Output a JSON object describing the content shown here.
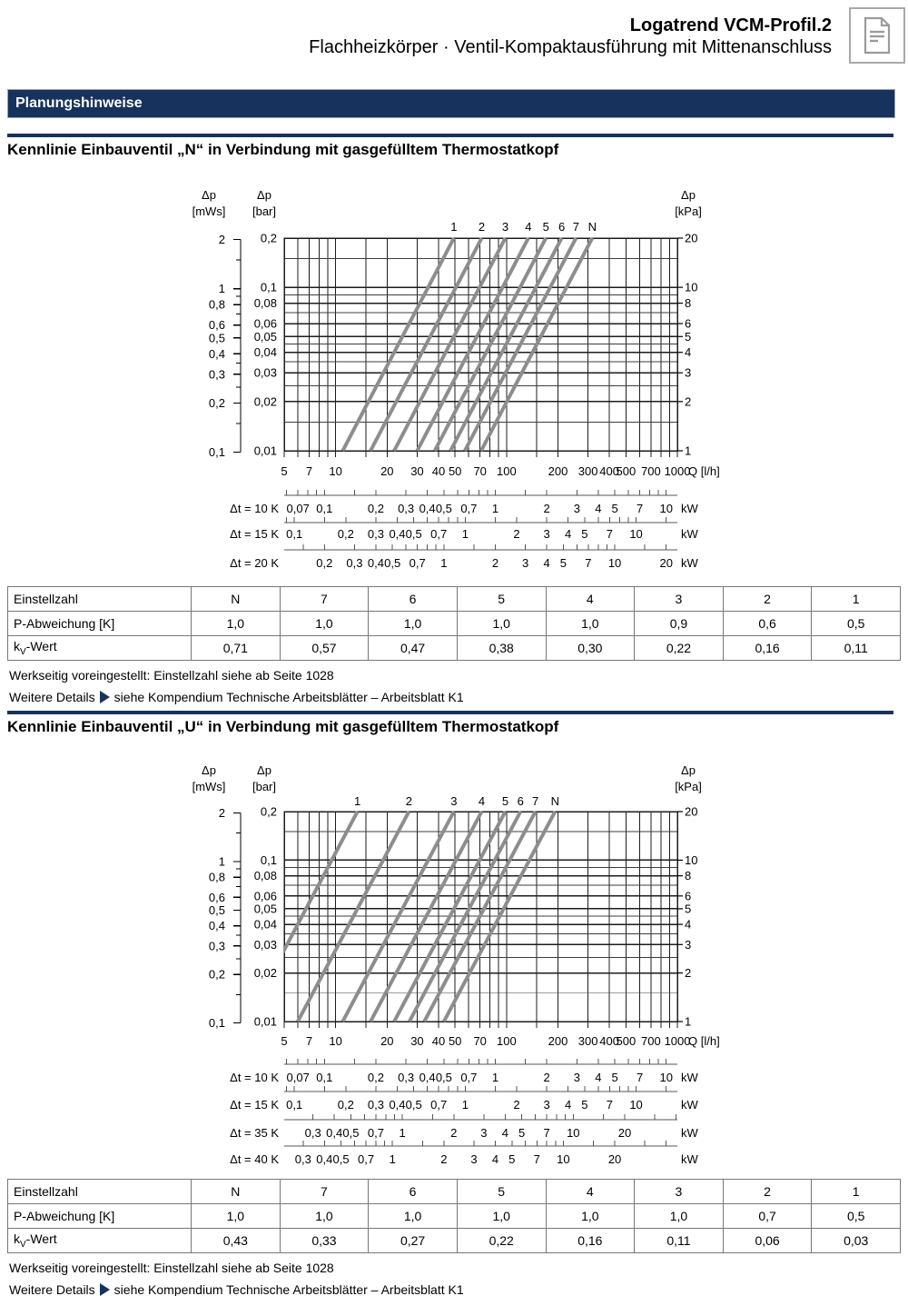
{
  "header": {
    "title": "Logatrend VCM-Profil.2",
    "subtitle": "Flachheizkörper · Ventil-Kompaktausführung mit Mittenanschluss"
  },
  "banner": {
    "label": "Planungshinweise"
  },
  "colors": {
    "navy": "#17325c",
    "curve_gray": "#8d8d8d",
    "grid_major": "#1c1c1c",
    "grid_minor": "#3c3c3c",
    "ruler_line": "#555555",
    "table_border": "#777777",
    "icon_gray": "#9b9b9b"
  },
  "sections": [
    {
      "title": "Kennlinie Einbauventil „N“ in Verbindung mit gasgefülltem Thermostatkopf",
      "table": {
        "rows": [
          {
            "label": "Einstellzahl",
            "values": [
              "N",
              "7",
              "6",
              "5",
              "4",
              "3",
              "2",
              "1"
            ]
          },
          {
            "label": "P-Abweichung [K]",
            "values": [
              "1,0",
              "1,0",
              "1,0",
              "1,0",
              "1,0",
              "0,9",
              "0,6",
              "0,5"
            ]
          },
          {
            "label_parts": {
              "pre": "k",
              "sub": "V",
              "post": "-Wert"
            },
            "values": [
              "0,71",
              "0,57",
              "0,47",
              "0,38",
              "0,30",
              "0,22",
              "0,16",
              "0,11"
            ]
          }
        ]
      },
      "notes": {
        "preset": "Werkseitig voreingestellt: Einstellzahl siehe ab Seite 1028",
        "details_pre": "Weitere Details",
        "details_post": "siehe Kompendium Technische Arbeitsblätter – Arbeitsblatt K1"
      }
    },
    {
      "title": "Kennlinie Einbauventil „U“ in Verbindung mit gasgefülltem Thermostatkopf",
      "table": {
        "rows": [
          {
            "label": "Einstellzahl",
            "values": [
              "N",
              "7",
              "6",
              "5",
              "4",
              "3",
              "2",
              "1"
            ]
          },
          {
            "label": "P-Abweichung [K]",
            "values": [
              "1,0",
              "1,0",
              "1,0",
              "1,0",
              "1,0",
              "1,0",
              "0,7",
              "0,5"
            ]
          },
          {
            "label_parts": {
              "pre": "k",
              "sub": "V",
              "post": "-Wert"
            },
            "values": [
              "0,43",
              "0,33",
              "0,27",
              "0,22",
              "0,16",
              "0,11",
              "0,06",
              "0,03"
            ]
          }
        ]
      },
      "notes": {
        "preset": "Werkseitig voreingestellt: Einstellzahl siehe ab Seite 1028",
        "details_pre": "Weitere Details",
        "details_post": "siehe Kompendium Technische Arbeitsblätter – Arbeitsblatt K1"
      }
    }
  ],
  "chart_data": [
    {
      "type": "line",
      "name": "Einbauventil N",
      "scale": "log-log",
      "x_axis": {
        "label": "Q [l/h]",
        "min": 5,
        "max": 1000,
        "tick_labels": [
          5,
          7,
          10,
          20,
          30,
          40,
          50,
          70,
          100,
          200,
          300,
          400,
          500,
          700,
          1000
        ],
        "gridlines": [
          5,
          6,
          7,
          8,
          9,
          10,
          15,
          20,
          30,
          40,
          50,
          60,
          70,
          80,
          90,
          100,
          150,
          200,
          300,
          400,
          500,
          600,
          700,
          800,
          900,
          1000
        ]
      },
      "y_axis_bar": {
        "header": [
          "Δp",
          "[bar]"
        ],
        "min": 0.01,
        "max": 0.2,
        "labeled_gridlines": [
          0.2,
          0.1,
          0.08,
          0.06,
          0.05,
          0.04,
          0.03,
          0.02,
          0.01
        ],
        "minor_gridlines": [
          0.15,
          0.09,
          0.07,
          0.045,
          0.035,
          0.025,
          0.015
        ]
      },
      "y_axis_mws": {
        "header": [
          "Δp",
          "[mWs]"
        ],
        "bar_per_mws": 0.098,
        "labeled_ticks": [
          2,
          1,
          0.8,
          0.6,
          0.5,
          0.4,
          0.3,
          0.2,
          0.1
        ],
        "minor_ticks": [
          1.5,
          0.9,
          0.7,
          0.35,
          0.25,
          0.15
        ]
      },
      "y_axis_kpa": {
        "header": [
          "Δp",
          "[kPa]"
        ],
        "labels": [
          20,
          10,
          8,
          6,
          5,
          4,
          3,
          2,
          1
        ]
      },
      "series": [
        {
          "name": "1",
          "kv": 0.11
        },
        {
          "name": "2",
          "kv": 0.16
        },
        {
          "name": "3",
          "kv": 0.22
        },
        {
          "name": "4",
          "kv": 0.3
        },
        {
          "name": "5",
          "kv": 0.38
        },
        {
          "name": "6",
          "kv": 0.47
        },
        {
          "name": "7",
          "kv": 0.57
        },
        {
          "name": "N",
          "kv": 0.71
        }
      ],
      "curve_relation": "Δp[bar] = (Q[l/h] / (1000 · kV))²",
      "power_factor_kW_per_lh_K": 0.001163,
      "ruler_tick_mantissas": [
        1,
        1.5,
        2,
        3,
        4,
        5,
        6,
        7,
        8,
        9
      ],
      "rulers": [
        {
          "label": "Δt = 10 K",
          "dt_K": 10,
          "unit": "kW",
          "tick_labels": [
            0.07,
            0.1,
            0.2,
            0.3,
            0.4,
            0.5,
            0.7,
            1,
            2,
            3,
            4,
            5,
            7,
            10
          ]
        },
        {
          "label": "Δt = 15 K",
          "dt_K": 15,
          "unit": "kW",
          "tick_labels": [
            0.1,
            0.2,
            0.3,
            0.4,
            0.5,
            0.7,
            1,
            2,
            3,
            4,
            5,
            7,
            10
          ]
        },
        {
          "label": "Δt = 20 K",
          "dt_K": 20,
          "unit": "kW",
          "tick_labels": [
            0.2,
            0.3,
            0.4,
            0.5,
            0.7,
            1,
            2,
            3,
            4,
            5,
            7,
            10,
            20
          ]
        }
      ]
    },
    {
      "type": "line",
      "name": "Einbauventil U",
      "scale": "log-log",
      "x_axis": {
        "label": "Q [l/h]",
        "min": 5,
        "max": 1000,
        "tick_labels": [
          5,
          7,
          10,
          20,
          30,
          40,
          50,
          70,
          100,
          200,
          300,
          400,
          500,
          700,
          1000
        ],
        "gridlines": [
          5,
          6,
          7,
          8,
          9,
          10,
          15,
          20,
          30,
          40,
          50,
          60,
          70,
          80,
          90,
          100,
          150,
          200,
          300,
          400,
          500,
          600,
          700,
          800,
          900,
          1000
        ]
      },
      "y_axis_bar": {
        "header": [
          "Δp",
          "[bar]"
        ],
        "min": 0.01,
        "max": 0.2,
        "labeled_gridlines": [
          0.2,
          0.1,
          0.08,
          0.06,
          0.05,
          0.04,
          0.03,
          0.02,
          0.01
        ],
        "minor_gridlines": [
          0.15,
          0.09,
          0.07,
          0.045,
          0.035,
          0.025,
          0.015
        ]
      },
      "y_axis_mws": {
        "header": [
          "Δp",
          "[mWs]"
        ],
        "bar_per_mws": 0.098,
        "labeled_ticks": [
          2,
          1,
          0.8,
          0.6,
          0.5,
          0.4,
          0.3,
          0.2,
          0.1
        ],
        "minor_ticks": [
          1.5,
          0.9,
          0.7,
          0.35,
          0.25,
          0.15
        ]
      },
      "y_axis_kpa": {
        "header": [
          "Δp",
          "[kPa]"
        ],
        "labels": [
          20,
          10,
          8,
          6,
          5,
          4,
          3,
          2,
          1
        ]
      },
      "series": [
        {
          "name": "1",
          "kv": 0.03
        },
        {
          "name": "2",
          "kv": 0.06
        },
        {
          "name": "3",
          "kv": 0.11
        },
        {
          "name": "4",
          "kv": 0.16
        },
        {
          "name": "5",
          "kv": 0.22
        },
        {
          "name": "6",
          "kv": 0.27
        },
        {
          "name": "7",
          "kv": 0.33
        },
        {
          "name": "N",
          "kv": 0.43
        }
      ],
      "curve_relation": "Δp[bar] = (Q[l/h] / (1000 · kV))²",
      "power_factor_kW_per_lh_K": 0.001163,
      "ruler_tick_mantissas": [
        1,
        1.5,
        2,
        3,
        4,
        5,
        6,
        7,
        8,
        9
      ],
      "rulers": [
        {
          "label": "Δt = 10 K",
          "dt_K": 10,
          "unit": "kW",
          "tick_labels": [
            0.07,
            0.1,
            0.2,
            0.3,
            0.4,
            0.5,
            0.7,
            1,
            2,
            3,
            4,
            5,
            7,
            10
          ]
        },
        {
          "label": "Δt = 15 K",
          "dt_K": 15,
          "unit": "kW",
          "tick_labels": [
            0.1,
            0.2,
            0.3,
            0.4,
            0.5,
            0.7,
            1,
            2,
            3,
            4,
            5,
            7,
            10
          ]
        },
        {
          "label": "Δt = 35 K",
          "dt_K": 35,
          "unit": "kW",
          "tick_labels": [
            0.3,
            0.4,
            0.5,
            0.7,
            1,
            2,
            3,
            4,
            5,
            7,
            10,
            20
          ]
        },
        {
          "label": "Δt = 40 K",
          "dt_K": 40,
          "unit": "kW",
          "tick_labels": [
            0.3,
            0.4,
            0.5,
            0.7,
            1,
            2,
            3,
            4,
            5,
            7,
            10,
            20
          ]
        }
      ]
    }
  ]
}
